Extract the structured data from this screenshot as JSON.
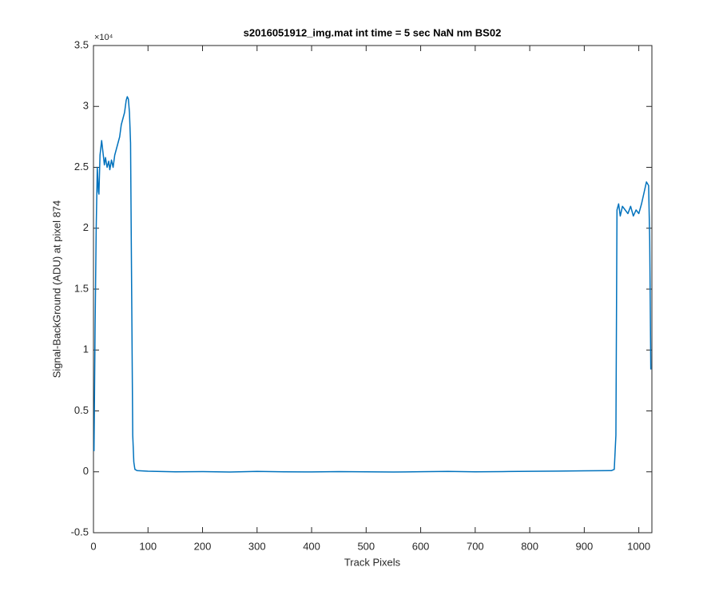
{
  "chart_data": {
    "type": "line",
    "title": "s2016051912_img.mat int time = 5 sec  NaN nm BS02",
    "xlabel": "Track Pixels",
    "ylabel": "Signal-BackGround (ADU) at pixel 874",
    "y_exponent_label": "×10⁴",
    "color": "#0072bd",
    "x": [
      1,
      3,
      5,
      7,
      9,
      10,
      12,
      15,
      18,
      20,
      22,
      25,
      28,
      30,
      33,
      36,
      39,
      42,
      45,
      48,
      51,
      54,
      57,
      60,
      62,
      64,
      66,
      68,
      70,
      72,
      74,
      76,
      80,
      100,
      150,
      200,
      250,
      300,
      350,
      400,
      450,
      500,
      550,
      600,
      650,
      700,
      750,
      800,
      850,
      900,
      950,
      955,
      958,
      960,
      963,
      966,
      970,
      975,
      980,
      985,
      990,
      995,
      1000,
      1005,
      1010,
      1014,
      1018,
      1020,
      1022
    ],
    "values": [
      1700,
      12000,
      20000,
      25000,
      23000,
      22800,
      26000,
      27200,
      26000,
      25200,
      25800,
      25000,
      25500,
      24800,
      25600,
      25000,
      26000,
      26500,
      27000,
      27500,
      28500,
      29000,
      29500,
      30500,
      30800,
      30600,
      29500,
      27000,
      15000,
      3000,
      800,
      200,
      100,
      50,
      0,
      20,
      -20,
      30,
      0,
      -10,
      20,
      0,
      -20,
      10,
      30,
      0,
      20,
      40,
      60,
      80,
      100,
      200,
      3000,
      21500,
      22000,
      21000,
      21800,
      21500,
      21200,
      21800,
      21000,
      21500,
      21200,
      22000,
      23000,
      23800,
      23500,
      19000,
      8400
    ],
    "xlim": [
      0,
      1024
    ],
    "xticks": [
      0,
      100,
      200,
      300,
      400,
      500,
      600,
      700,
      800,
      900,
      1000
    ],
    "ylim": [
      -5000,
      35000
    ],
    "yticks": [
      {
        "value": -5000,
        "label": "-0.5"
      },
      0,
      {
        "value": 5000,
        "label": "0.5"
      },
      {
        "value": 10000,
        "label": "1"
      },
      {
        "value": 15000,
        "label": "1.5"
      },
      {
        "value": 20000,
        "label": "2"
      },
      {
        "value": 25000,
        "label": "2.5"
      },
      {
        "value": 30000,
        "label": "3"
      },
      {
        "value": 35000,
        "label": "3.5"
      }
    ],
    "grid": false
  }
}
